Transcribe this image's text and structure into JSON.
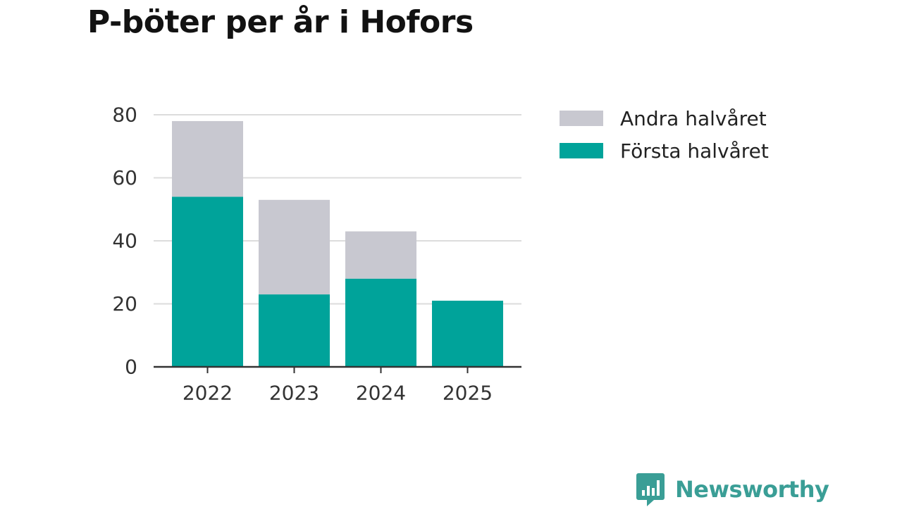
{
  "chart": {
    "title": "P-böter per år i Hofors"
  },
  "legend": {
    "items": [
      {
        "label": "Andra halvåret",
        "color": "#c8c8d0"
      },
      {
        "label": "Första halvåret",
        "color": "#00a39a"
      }
    ]
  },
  "brand": {
    "name": "Newsworthy",
    "color": "#3a9e96",
    "icon": "bar-chart-speech-bubble-icon"
  },
  "chart_data": {
    "type": "bar",
    "stacked": true,
    "title": "P-böter per år i Hofors",
    "xlabel": "",
    "ylabel": "",
    "categories": [
      "2022",
      "2023",
      "2024",
      "2025"
    ],
    "series": [
      {
        "name": "Första halvåret",
        "color": "#00a39a",
        "values": [
          54,
          23,
          28,
          21
        ]
      },
      {
        "name": "Andra halvåret",
        "color": "#c8c8d0",
        "values": [
          24,
          30,
          15,
          0
        ]
      }
    ],
    "ylim": [
      0,
      80
    ],
    "yticks": [
      0,
      20,
      40,
      60,
      80
    ],
    "grid": true,
    "legend_position": "right"
  }
}
